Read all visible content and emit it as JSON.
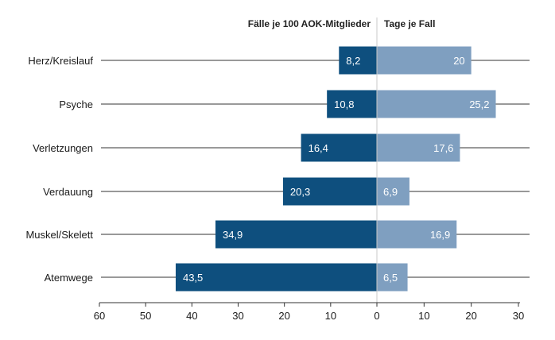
{
  "chart_data": {
    "type": "bar",
    "orientation": "horizontal-butterfly",
    "header_left": "Fälle je 100 AOK-Mitglieder",
    "header_right": "Tage je Fall",
    "categories": [
      "Herz/Kreislauf",
      "Psyche",
      "Verletzungen",
      "Verdauung",
      "Muskel/Skelett",
      "Atemwege"
    ],
    "series": [
      {
        "name": "Fälle je 100 AOK-Mitglieder",
        "side": "left",
        "color": "#0e4f7e",
        "values": [
          8.2,
          10.8,
          16.4,
          20.3,
          34.9,
          43.5
        ],
        "labels": [
          "8,2",
          "10,8",
          "16,4",
          "20,3",
          "34,9",
          "43,5"
        ]
      },
      {
        "name": "Tage je Fall",
        "side": "right",
        "color": "#7f9fc0",
        "values": [
          20,
          25.2,
          17.6,
          6.9,
          16.9,
          6.5
        ],
        "labels": [
          "20",
          "25,2",
          "17,6",
          "6,9",
          "16,9",
          "6,5"
        ]
      }
    ],
    "x_ticks_left": [
      "60",
      "50",
      "40",
      "30",
      "20",
      "10",
      "0"
    ],
    "x_ticks_right": [
      "10",
      "20",
      "30"
    ],
    "xlim_left": [
      0,
      60
    ],
    "xlim_right": [
      0,
      30
    ],
    "grid": false,
    "legend": "none"
  }
}
